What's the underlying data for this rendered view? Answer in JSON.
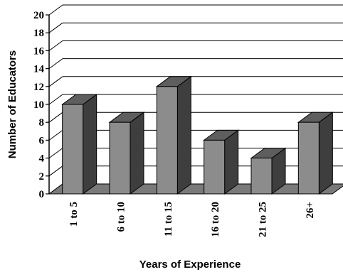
{
  "chart_data": {
    "type": "bar",
    "categories": [
      "1 to 5",
      "6 to 10",
      "11 to 15",
      "16 to 20",
      "21 to 25",
      "26+"
    ],
    "values": [
      10,
      8,
      12,
      6,
      4,
      8
    ],
    "title": "",
    "xlabel": "Years of Experience",
    "ylabel": "Number of Educators",
    "ylim": [
      0,
      20
    ],
    "yticks": [
      0,
      2,
      4,
      6,
      8,
      10,
      12,
      14,
      16,
      18,
      20
    ],
    "grid": true,
    "legend": "none",
    "colors": {
      "bar_front": "#8c8c8c",
      "bar_top": "#5e5e5e",
      "bar_side": "#3e3e3e",
      "floor": "#7a7a7a",
      "grid": "#000000"
    }
  }
}
